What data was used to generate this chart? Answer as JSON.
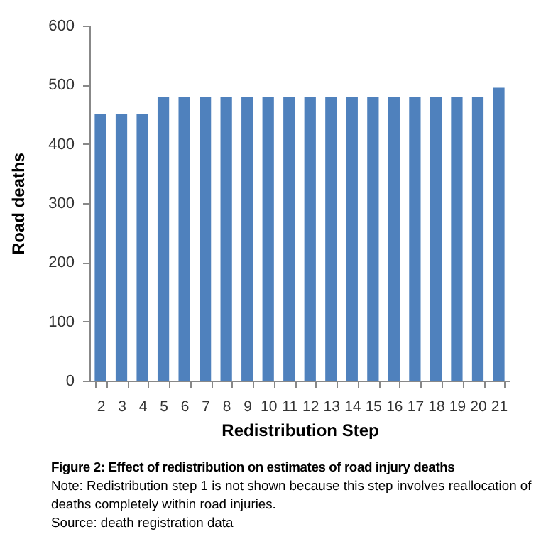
{
  "chart_data": {
    "type": "bar",
    "title": "Figure 2: Effect of redistribution on estimates of road injury deaths",
    "xlabel": "Redistribution Step",
    "ylabel": "Road deaths",
    "categories": [
      "2",
      "3",
      "4",
      "5",
      "6",
      "7",
      "8",
      "9",
      "10",
      "11",
      "12",
      "13",
      "14",
      "15",
      "16",
      "17",
      "18",
      "19",
      "20",
      "21"
    ],
    "values": [
      450,
      450,
      450,
      480,
      480,
      480,
      480,
      480,
      480,
      480,
      480,
      480,
      480,
      480,
      480,
      480,
      480,
      480,
      480,
      495
    ],
    "color": "#4f81bd",
    "ylim": [
      0,
      600
    ],
    "yticks": [
      0,
      100,
      200,
      300,
      400,
      500,
      600
    ],
    "grid": false,
    "annotations": [
      "Note: Redistribution step 1 is not shown because this step involves reallocation of deaths completely within road injuries.",
      "Source: death registration data"
    ]
  }
}
